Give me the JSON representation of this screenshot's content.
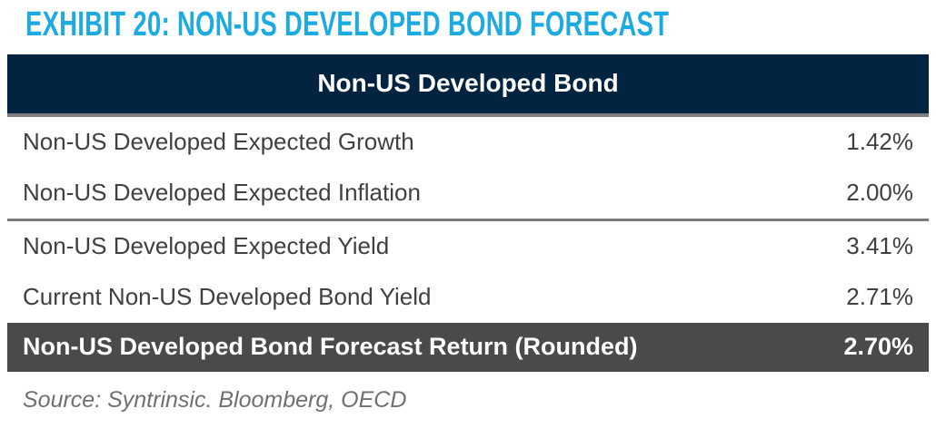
{
  "title": "EXHIBIT 20: NON-US DEVELOPED BOND FORECAST",
  "table": {
    "header": "Non-US Developed Bond",
    "rows": [
      {
        "label": "Non-US Developed Expected Growth",
        "value": "1.42%"
      },
      {
        "label": "Non-US Developed Expected Inflation",
        "value": "2.00%"
      },
      {
        "label": "Non-US Developed Expected Yield",
        "value": "3.41%"
      },
      {
        "label": "Current Non-US Developed Bond Yield",
        "value": "2.71%"
      }
    ],
    "total": {
      "label": "Non-US Developed Bond Forecast Return (Rounded)",
      "value": "2.70%"
    }
  },
  "source": "Source: Syntrinsic. Bloomberg, OECD",
  "colors": {
    "title_accent": "#1BAAE1",
    "header_bg": "#032440",
    "header_text": "#FFFFFF",
    "divider_gray": "#7A7A7A",
    "total_row_bg": "#4A4A4C",
    "total_row_text": "#FFFFFF",
    "body_text": "#3F4043",
    "source_text": "#6E7073"
  }
}
